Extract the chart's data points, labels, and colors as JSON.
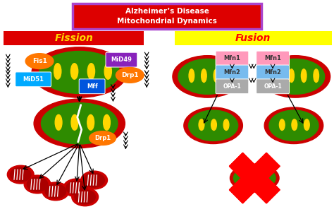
{
  "title_line1": "Alzheimer’s Disease",
  "title_line2": "Mitochondrial Dynamics",
  "title_bg": "#DD0000",
  "title_border": "#AA44CC",
  "title_text_color": "#FFFFFF",
  "fission_label": "Fission",
  "fission_bg": "#DD0000",
  "fission_text_color": "#FFD700",
  "fusion_label": "Fusion",
  "fusion_bg": "#FFFF00",
  "fusion_text_color": "#FF0000",
  "bg_color": "#FFFFFF",
  "mito_outer_color": "#CC0000",
  "mito_inner_color": "#2E8B00",
  "mito_cristae_color": "#FFD700",
  "fis1_color": "#FF7700",
  "mid49_color": "#8822BB",
  "drp1_color": "#FF7700",
  "mid51_color": "#00AAFF",
  "mff_color": "#0055DD",
  "mfn1_color": "#FF99BB",
  "mfn2_color": "#77BBEE",
  "opa1_color": "#AAAAAA",
  "small_mito_red": "#CC0000",
  "small_mito_inner": "#CC0000"
}
